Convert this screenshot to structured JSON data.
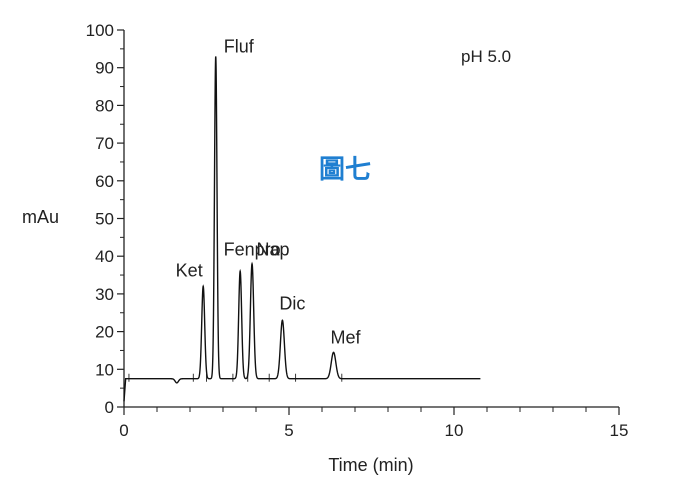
{
  "chart_data": {
    "type": "line",
    "xlabel": "Time (min)",
    "ylabel": "mAu",
    "xlim": [
      0,
      15
    ],
    "ylim": [
      0,
      100
    ],
    "x_ticks": [
      "0",
      "5",
      "10",
      "15"
    ],
    "y_ticks": [
      "0",
      "10",
      "20",
      "30",
      "40",
      "50",
      "60",
      "70",
      "80",
      "90",
      "100"
    ],
    "baseline": 7.5,
    "trace_range": [
      0,
      10.8
    ],
    "condition": "pH 5.0",
    "figure_tag": "圖七",
    "peaks": [
      {
        "name": "Ket",
        "time": 2.4,
        "height": 32
      },
      {
        "name": "Fluf",
        "time": 2.78,
        "height": 93
      },
      {
        "name": "Fenpro",
        "time": 3.52,
        "height": 36
      },
      {
        "name": "Nap",
        "time": 3.88,
        "height": 38
      },
      {
        "name": "Dic",
        "time": 4.8,
        "height": 23
      },
      {
        "name": "Mef",
        "time": 6.35,
        "height": 14.5
      }
    ],
    "colors": {
      "trace": "#111111",
      "figure_tag": "#1f7fd1"
    }
  }
}
